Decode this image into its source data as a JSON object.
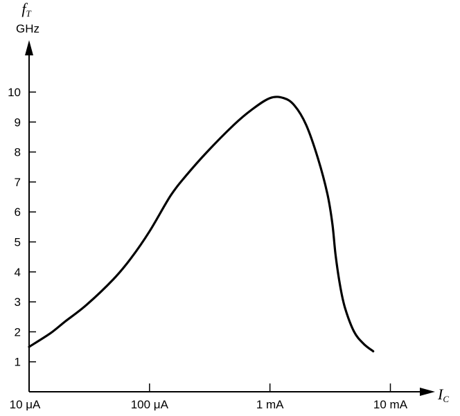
{
  "chart_data": {
    "type": "line",
    "title": "",
    "xscale": "log",
    "xlim": [
      1e-05,
      0.01
    ],
    "ylim": [
      0,
      11
    ],
    "x_tick_values": [
      1e-05,
      0.0001,
      0.001,
      0.01
    ],
    "x_tick_labels": [
      "10 μA",
      "100 μA",
      "1 mA",
      "10 mA"
    ],
    "y_ticks": [
      1,
      2,
      3,
      4,
      5,
      6,
      7,
      8,
      9,
      10
    ],
    "y_tick_labels": [
      "1",
      "2",
      "3",
      "4",
      "5",
      "6",
      "7",
      "8",
      "9",
      "10"
    ],
    "ylabel": {
      "symbol": "f",
      "sub": "T",
      "unit": "GHz"
    },
    "xlabel": {
      "symbol": "I",
      "sub": "C"
    },
    "grid": false,
    "legend": "none",
    "line_color": "#000000",
    "series": [
      {
        "x": [
          1e-05,
          1.5e-05,
          2e-05,
          3e-05,
          5e-05,
          7e-05,
          0.0001,
          0.00015,
          0.0002,
          0.0003,
          0.0005,
          0.0007,
          0.001,
          0.0013,
          0.0016,
          0.002,
          0.0025,
          0.003,
          0.0033,
          0.0035,
          0.0038,
          0.0042,
          0.005,
          0.006,
          0.0072
        ],
        "y": [
          1.5,
          1.95,
          2.35,
          2.9,
          3.75,
          4.45,
          5.35,
          6.55,
          7.2,
          8.0,
          8.9,
          9.4,
          9.8,
          9.8,
          9.55,
          8.9,
          7.8,
          6.6,
          5.6,
          4.6,
          3.6,
          2.8,
          2.0,
          1.6,
          1.35
        ]
      }
    ]
  }
}
